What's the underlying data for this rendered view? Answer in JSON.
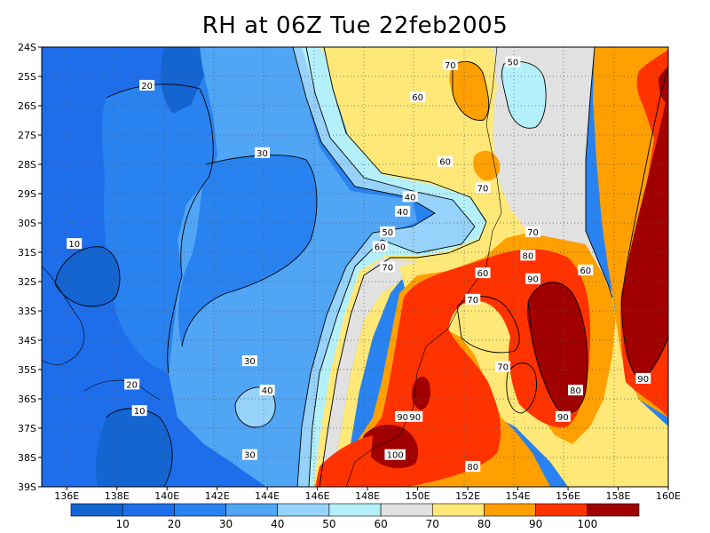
{
  "title": "RH at 06Z Tue 22feb2005",
  "colors": {
    "c0_10": "#1464d2",
    "c10_20": "#1e6eeb",
    "c20_30": "#2882f0",
    "c30_40": "#50a5f5",
    "c40_50": "#96d2fa",
    "c50_60": "#b4f0fa",
    "c60_70": "#e1e1e1",
    "c70_80": "#ffe878",
    "c80_90": "#ffa000",
    "c90_100": "#ff3200",
    "c100": "#a00000"
  },
  "axes": {
    "y_ticks": [
      "24S",
      "25S",
      "26S",
      "27S",
      "28S",
      "29S",
      "30S",
      "31S",
      "32S",
      "33S",
      "34S",
      "35S",
      "36S",
      "37S",
      "38S",
      "39S"
    ],
    "x_ticks": [
      "136E",
      "138E",
      "140E",
      "142E",
      "144E",
      "146E",
      "148E",
      "150E",
      "152E",
      "154E",
      "156E",
      "158E",
      "160E"
    ]
  },
  "contour_labels": [
    {
      "text": "20",
      "lon": 139.2,
      "lat": -25.3
    },
    {
      "text": "30",
      "lon": 143.8,
      "lat": -27.6
    },
    {
      "text": "10",
      "lon": 136.3,
      "lat": -30.7
    },
    {
      "text": "30",
      "lon": 143.3,
      "lat": -34.7
    },
    {
      "text": "40",
      "lon": 144.0,
      "lat": -35.7
    },
    {
      "text": "20",
      "lon": 138.6,
      "lat": -35.5
    },
    {
      "text": "10",
      "lon": 138.9,
      "lat": -36.4
    },
    {
      "text": "30",
      "lon": 143.3,
      "lat": -37.9
    },
    {
      "text": "70",
      "lon": 151.3,
      "lat": -24.6
    },
    {
      "text": "50",
      "lon": 153.8,
      "lat": -24.5
    },
    {
      "text": "60",
      "lon": 150.0,
      "lat": -25.7
    },
    {
      "text": "60",
      "lon": 151.1,
      "lat": -27.9
    },
    {
      "text": "70",
      "lon": 152.6,
      "lat": -28.8
    },
    {
      "text": "40",
      "lon": 149.7,
      "lat": -29.1
    },
    {
      "text": "40",
      "lon": 149.4,
      "lat": -29.6
    },
    {
      "text": "50",
      "lon": 148.8,
      "lat": -30.3
    },
    {
      "text": "60",
      "lon": 148.5,
      "lat": -30.8
    },
    {
      "text": "70",
      "lon": 154.6,
      "lat": -30.3
    },
    {
      "text": "80",
      "lon": 154.4,
      "lat": -31.1
    },
    {
      "text": "70",
      "lon": 148.8,
      "lat": -31.5
    },
    {
      "text": "60",
      "lon": 152.6,
      "lat": -31.7
    },
    {
      "text": "90",
      "lon": 154.6,
      "lat": -31.9
    },
    {
      "text": "60",
      "lon": 156.7,
      "lat": -31.6
    },
    {
      "text": "70",
      "lon": 152.2,
      "lat": -32.6
    },
    {
      "text": "70",
      "lon": 153.4,
      "lat": -34.9
    },
    {
      "text": "90",
      "lon": 159.0,
      "lat": -35.3
    },
    {
      "text": "80",
      "lon": 156.3,
      "lat": -35.7
    },
    {
      "text": "90",
      "lon": 149.4,
      "lat": -36.6
    },
    {
      "text": "90",
      "lon": 149.9,
      "lat": -36.6
    },
    {
      "text": "90",
      "lon": 155.8,
      "lat": -36.6
    },
    {
      "text": "100",
      "lon": 149.1,
      "lat": -37.9
    },
    {
      "text": "80",
      "lon": 152.2,
      "lat": -38.3
    }
  ],
  "colorbar": {
    "labels": [
      "10",
      "20",
      "30",
      "40",
      "50",
      "60",
      "70",
      "80",
      "90",
      "100"
    ]
  }
}
